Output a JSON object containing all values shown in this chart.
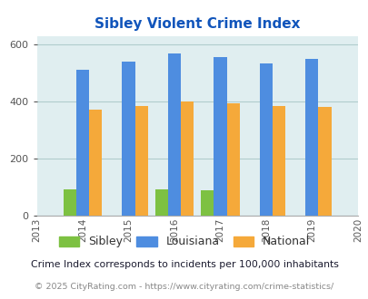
{
  "title": "Sibley Violent Crime Index",
  "all_years": [
    2013,
    2014,
    2015,
    2016,
    2017,
    2018,
    2019,
    2020
  ],
  "data_years": [
    2014,
    2015,
    2016,
    2017,
    2018,
    2019
  ],
  "sibley": [
    90,
    0,
    90,
    88,
    0,
    0
  ],
  "louisiana": [
    510,
    540,
    568,
    555,
    533,
    548
  ],
  "national": [
    372,
    383,
    399,
    394,
    383,
    379
  ],
  "sibley_color": "#7dc142",
  "louisiana_color": "#4e8de0",
  "national_color": "#f5a93a",
  "bg_color": "#e0eef0",
  "ylim": [
    0,
    630
  ],
  "yticks": [
    0,
    200,
    400,
    600
  ],
  "title_color": "#1155bb",
  "subtitle": "Crime Index corresponds to incidents per 100,000 inhabitants",
  "footer": "© 2025 CityRating.com - https://www.cityrating.com/crime-statistics/",
  "bar_width": 0.28,
  "grid_color": "#b0cccc",
  "subtitle_color": "#1a1a2e",
  "footer_color": "#888888",
  "footer_link_color": "#4477cc"
}
